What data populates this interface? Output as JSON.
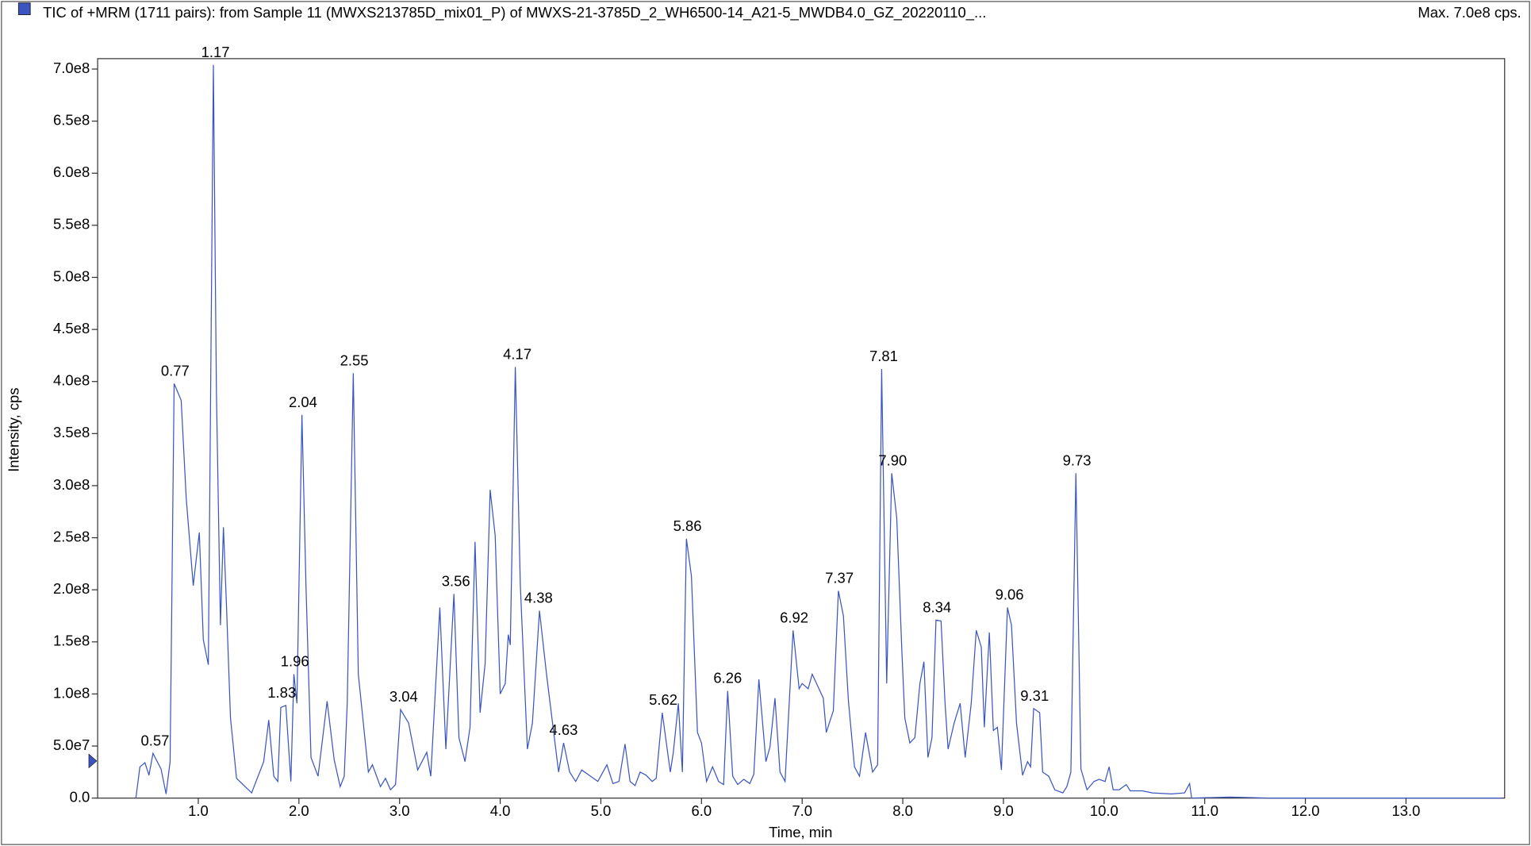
{
  "chart_data": {
    "type": "line",
    "title": "TIC of +MRM (1711 pairs): from Sample 11 (MWXS213785D_mix01_P) of MWXS-21-3785D_2_WH6500-14_A21-5_MWDB4.0_GZ_20220110_...",
    "subtitle": "Max. 7.0e8 cps.",
    "x_label": "Time, min",
    "y_label": "Intensity, cps",
    "color": "#3b55c0",
    "xlim": [
      0,
      13.98
    ],
    "ylim": [
      0,
      710000000.0
    ],
    "xticks": [
      {
        "value": 1,
        "label": "1.0"
      },
      {
        "value": 2,
        "label": "2.0"
      },
      {
        "value": 3,
        "label": "3.0"
      },
      {
        "value": 4,
        "label": "4.0"
      },
      {
        "value": 5,
        "label": "5.0"
      },
      {
        "value": 6,
        "label": "6.0"
      },
      {
        "value": 7,
        "label": "7.0"
      },
      {
        "value": 8,
        "label": "8.0"
      },
      {
        "value": 9,
        "label": "9.0"
      },
      {
        "value": 10,
        "label": "10.0"
      },
      {
        "value": 11,
        "label": "11.0"
      },
      {
        "value": 12,
        "label": "12.0"
      },
      {
        "value": 13,
        "label": "13.0"
      }
    ],
    "yticks": [
      {
        "value": 0,
        "label": "0.0"
      },
      {
        "value": 50000000.0,
        "label": "5.0e7"
      },
      {
        "value": 100000000.0,
        "label": "1.0e8"
      },
      {
        "value": 150000000.0,
        "label": "1.5e8"
      },
      {
        "value": 200000000.0,
        "label": "2.0e8"
      },
      {
        "value": 250000000.0,
        "label": "2.5e8"
      },
      {
        "value": 300000000.0,
        "label": "3.0e8"
      },
      {
        "value": 350000000.0,
        "label": "3.5e8"
      },
      {
        "value": 400000000.0,
        "label": "4.0e8"
      },
      {
        "value": 450000000.0,
        "label": "4.5e8"
      },
      {
        "value": 500000000.0,
        "label": "5.0e8"
      },
      {
        "value": 550000000.0,
        "label": "5.5e8"
      },
      {
        "value": 600000000.0,
        "label": "6.0e8"
      },
      {
        "value": 650000000.0,
        "label": "6.5e8"
      },
      {
        "value": 700000000.0,
        "label": "7.0e8"
      }
    ],
    "grid": false,
    "x": [
      0.38,
      0.42,
      0.47,
      0.51,
      0.55,
      0.63,
      0.68,
      0.72,
      0.76,
      0.83,
      0.88,
      0.95,
      1.01,
      1.05,
      1.1,
      1.15,
      1.18,
      1.22,
      1.25,
      1.28,
      1.32,
      1.38,
      1.53,
      1.65,
      1.7,
      1.75,
      1.79,
      1.82,
      1.87,
      1.92,
      1.95,
      1.98,
      2.03,
      2.07,
      2.12,
      2.19,
      2.28,
      2.35,
      2.41,
      2.45,
      2.48,
      2.54,
      2.59,
      2.69,
      2.73,
      2.81,
      2.86,
      2.91,
      2.96,
      3.01,
      3.09,
      3.18,
      3.27,
      3.31,
      3.4,
      3.46,
      3.54,
      3.59,
      3.65,
      3.7,
      3.75,
      3.8,
      3.85,
      3.9,
      3.95,
      4.0,
      4.05,
      4.08,
      4.1,
      4.15,
      4.2,
      4.27,
      4.32,
      4.39,
      4.46,
      4.58,
      4.63,
      4.69,
      4.75,
      4.81,
      4.97,
      5.06,
      5.12,
      5.18,
      5.24,
      5.29,
      5.34,
      5.39,
      5.45,
      5.51,
      5.55,
      5.61,
      5.69,
      5.72,
      5.77,
      5.81,
      5.85,
      5.9,
      5.96,
      6.0,
      6.05,
      6.11,
      6.17,
      6.22,
      6.26,
      6.31,
      6.36,
      6.42,
      6.48,
      6.52,
      6.57,
      6.64,
      6.68,
      6.73,
      6.78,
      6.83,
      6.91,
      6.97,
      7.0,
      7.06,
      7.1,
      7.21,
      7.24,
      7.31,
      7.36,
      7.41,
      7.46,
      7.52,
      7.57,
      7.63,
      7.7,
      7.75,
      7.79,
      7.84,
      7.89,
      7.94,
      7.99,
      8.02,
      8.07,
      8.12,
      8.17,
      8.21,
      8.25,
      8.29,
      8.33,
      8.38,
      8.42,
      8.45,
      8.51,
      8.57,
      8.62,
      8.68,
      8.73,
      8.78,
      8.81,
      8.86,
      8.9,
      8.94,
      8.98,
      9.04,
      9.08,
      9.13,
      9.19,
      9.24,
      9.27,
      9.3,
      9.36,
      9.39,
      9.45,
      9.51,
      9.59,
      9.63,
      9.67,
      9.72,
      9.77,
      9.83,
      9.9,
      9.95,
      10.01,
      10.05,
      10.09,
      10.15,
      10.22,
      10.26,
      10.38,
      10.48,
      10.67,
      10.8,
      10.85,
      10.87,
      11.25,
      11.64,
      13.95
    ],
    "values": [
      0,
      30000000.0,
      34000000.0,
      22000000.0,
      43000000.0,
      28000000.0,
      4000000.0,
      35000000.0,
      398000000.0,
      382000000.0,
      288000000.0,
      204000000.0,
      255000000.0,
      152000000.0,
      128000000.0,
      704000000.0,
      391000000.0,
      166000000.0,
      260000000.0,
      185000000.0,
      77000000.0,
      19000000.0,
      5000000.0,
      35000000.0,
      75000000.0,
      21000000.0,
      16000000.0,
      87000000.0,
      89000000.0,
      16000000.0,
      119000000.0,
      91000000.0,
      368000000.0,
      204000000.0,
      39000000.0,
      21000000.0,
      93000000.0,
      37000000.0,
      11000000.0,
      21000000.0,
      91000000.0,
      408000000.0,
      119000000.0,
      25000000.0,
      32000000.0,
      11000000.0,
      19000000.0,
      8000000.0,
      13000000.0,
      85000000.0,
      72000000.0,
      27000000.0,
      44000000.0,
      21000000.0,
      183000000.0,
      47000000.0,
      196000000.0,
      58000000.0,
      35000000.0,
      68000000.0,
      246000000.0,
      82000000.0,
      129000000.0,
      296000000.0,
      252000000.0,
      100000000.0,
      110000000.0,
      157000000.0,
      147000000.0,
      414000000.0,
      204000000.0,
      47000000.0,
      72000000.0,
      180000000.0,
      119000000.0,
      25000000.0,
      53000000.0,
      25000000.0,
      16000000.0,
      27000000.0,
      16000000.0,
      32000000.0,
      14000000.0,
      16000000.0,
      52000000.0,
      16000000.0,
      12000000.0,
      25000000.0,
      22000000.0,
      16000000.0,
      19000000.0,
      82000000.0,
      25000000.0,
      44000000.0,
      91000000.0,
      25000000.0,
      249000000.0,
      213000000.0,
      63000000.0,
      53000000.0,
      16000000.0,
      30000000.0,
      16000000.0,
      13000000.0,
      103000000.0,
      21000000.0,
      13000000.0,
      18000000.0,
      14000000.0,
      23000000.0,
      114000000.0,
      35000000.0,
      49000000.0,
      96000000.0,
      25000000.0,
      16000000.0,
      161000000.0,
      105000000.0,
      110000000.0,
      105000000.0,
      119000000.0,
      96000000.0,
      63000000.0,
      84000000.0,
      199000000.0,
      175000000.0,
      93000000.0,
      30000000.0,
      21000000.0,
      63000000.0,
      25000000.0,
      32000000.0,
      412000000.0,
      110000000.0,
      312000000.0,
      269000000.0,
      143000000.0,
      77000000.0,
      53000000.0,
      58000000.0,
      110000000.0,
      131000000.0,
      39000000.0,
      58000000.0,
      171000000.0,
      170000000.0,
      91000000.0,
      47000000.0,
      72000000.0,
      91000000.0,
      39000000.0,
      91000000.0,
      161000000.0,
      145000000.0,
      68000000.0,
      159000000.0,
      65000000.0,
      68000000.0,
      27000000.0,
      183000000.0,
      166000000.0,
      72000000.0,
      22000000.0,
      35000000.0,
      30000000.0,
      86000000.0,
      82000000.0,
      25000000.0,
      21000000.0,
      8000000.0,
      5000000.0,
      11000000.0,
      25000000.0,
      312000000.0,
      28000000.0,
      8000000.0,
      16000000.0,
      18000000.0,
      16000000.0,
      30000000.0,
      8000000.0,
      8000000.0,
      13000000.0,
      7000000.0,
      7000000.0,
      5000000.0,
      4000000.0,
      5000000.0,
      14000000.0,
      0,
      1000000.0,
      0,
      0
    ],
    "annotations": [
      {
        "label": "0.57",
        "x": 0.57,
        "y": 43000000.0
      },
      {
        "label": "0.77",
        "x": 0.77,
        "y": 398000000.0
      },
      {
        "label": "1.17",
        "x": 1.17,
        "y": 704000000.0
      },
      {
        "label": "1.83",
        "x": 1.83,
        "y": 89000000.0
      },
      {
        "label": "1.96",
        "x": 1.96,
        "y": 119000000.0
      },
      {
        "label": "2.04",
        "x": 2.04,
        "y": 368000000.0
      },
      {
        "label": "2.55",
        "x": 2.55,
        "y": 408000000.0
      },
      {
        "label": "3.04",
        "x": 3.04,
        "y": 85000000.0
      },
      {
        "label": "3.56",
        "x": 3.56,
        "y": 196000000.0
      },
      {
        "label": "4.17",
        "x": 4.17,
        "y": 414000000.0
      },
      {
        "label": "4.38",
        "x": 4.38,
        "y": 180000000.0
      },
      {
        "label": "4.63",
        "x": 4.63,
        "y": 53000000.0
      },
      {
        "label": "5.62",
        "x": 5.62,
        "y": 82000000.0
      },
      {
        "label": "5.86",
        "x": 5.86,
        "y": 249000000.0
      },
      {
        "label": "6.26",
        "x": 6.26,
        "y": 103000000.0
      },
      {
        "label": "6.92",
        "x": 6.92,
        "y": 161000000.0
      },
      {
        "label": "7.37",
        "x": 7.37,
        "y": 199000000.0
      },
      {
        "label": "7.81",
        "x": 7.81,
        "y": 412000000.0
      },
      {
        "label": "7.90",
        "x": 7.9,
        "y": 312000000.0
      },
      {
        "label": "8.34",
        "x": 8.34,
        "y": 171000000.0
      },
      {
        "label": "9.06",
        "x": 9.06,
        "y": 183000000.0
      },
      {
        "label": "9.31",
        "x": 9.31,
        "y": 86000000.0
      },
      {
        "label": "9.73",
        "x": 9.73,
        "y": 312000000.0
      }
    ]
  }
}
